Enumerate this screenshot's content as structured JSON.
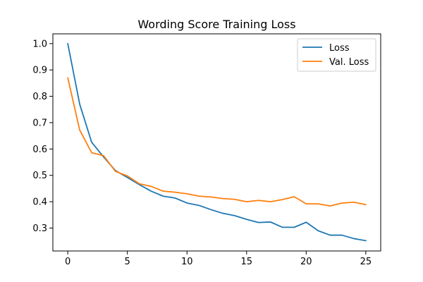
{
  "chart_data": {
    "type": "line",
    "title": "Wording Score Training Loss",
    "xlabel": "",
    "ylabel": "",
    "xlim": [
      -1.25,
      26.25
    ],
    "ylim": [
      0.213,
      1.037
    ],
    "xticks": [
      0,
      5,
      10,
      15,
      20,
      25
    ],
    "xtick_labels": [
      "0",
      "5",
      "10",
      "15",
      "20",
      "25"
    ],
    "yticks": [
      0.3,
      0.4,
      0.5,
      0.6,
      0.7,
      0.8,
      0.9,
      1.0
    ],
    "ytick_labels": [
      "0.3",
      "0.4",
      "0.5",
      "0.6",
      "0.7",
      "0.8",
      "0.9",
      "1.0"
    ],
    "grid": false,
    "legend_position": "top-right",
    "x": [
      0,
      1,
      2,
      3,
      4,
      5,
      6,
      7,
      8,
      9,
      10,
      11,
      12,
      13,
      14,
      15,
      16,
      17,
      18,
      19,
      20,
      21,
      22,
      23,
      24,
      25
    ],
    "series": [
      {
        "name": "Loss",
        "color": "#1f77b4",
        "values": [
          1.0,
          0.77,
          0.626,
          0.57,
          0.518,
          0.492,
          0.465,
          0.44,
          0.421,
          0.414,
          0.395,
          0.386,
          0.37,
          0.356,
          0.347,
          0.333,
          0.321,
          0.323,
          0.303,
          0.303,
          0.322,
          0.29,
          0.273,
          0.273,
          0.26,
          0.252
        ]
      },
      {
        "name": "Val. Loss",
        "color": "#ff7f0e",
        "values": [
          0.87,
          0.672,
          0.586,
          0.575,
          0.515,
          0.498,
          0.468,
          0.458,
          0.44,
          0.436,
          0.43,
          0.421,
          0.418,
          0.412,
          0.409,
          0.4,
          0.405,
          0.4,
          0.408,
          0.419,
          0.392,
          0.392,
          0.384,
          0.395,
          0.398,
          0.389
        ]
      }
    ]
  }
}
